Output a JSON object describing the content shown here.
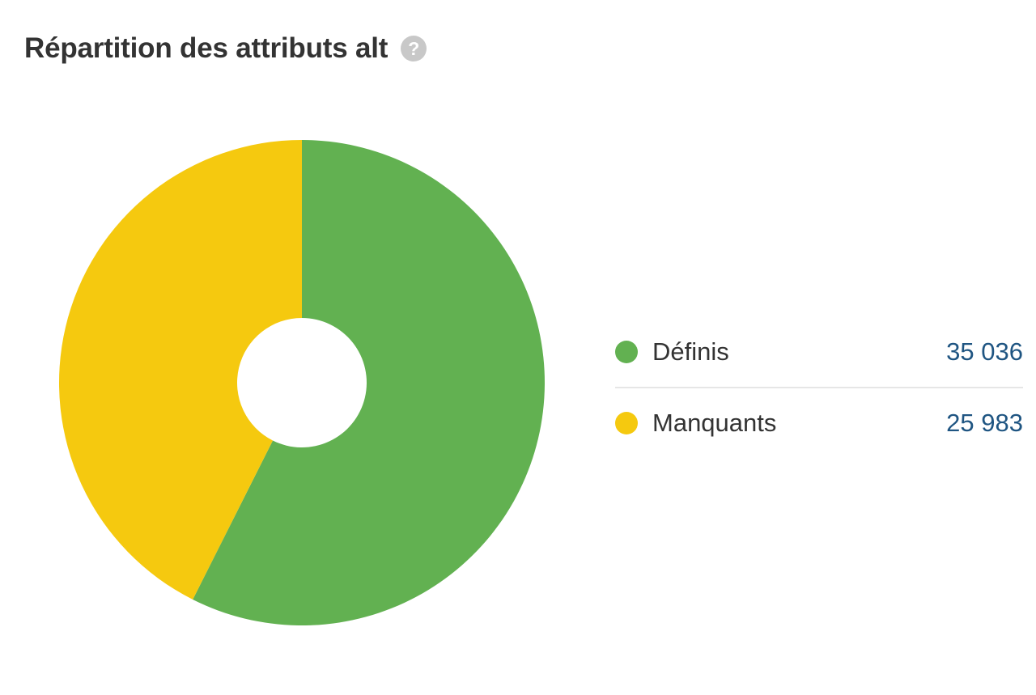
{
  "header": {
    "title": "Répartition des attributs alt",
    "help_glyph": "?",
    "help_icon": "question-circle-icon"
  },
  "colors": {
    "definis": "#62b151",
    "manquants": "#f5c90f",
    "value_text": "#1f5582"
  },
  "legend": {
    "items": [
      {
        "label": "Définis",
        "value": "35 036"
      },
      {
        "label": "Manquants",
        "value": "25 983"
      }
    ]
  },
  "chart_data": {
    "type": "pie",
    "title": "Répartition des attributs alt",
    "donut": true,
    "start": "top",
    "direction": "clockwise",
    "legend_position": "right",
    "categories": [
      "Définis",
      "Manquants"
    ],
    "values": [
      35036,
      25983
    ],
    "colors": [
      "#62b151",
      "#f5c90f"
    ]
  }
}
